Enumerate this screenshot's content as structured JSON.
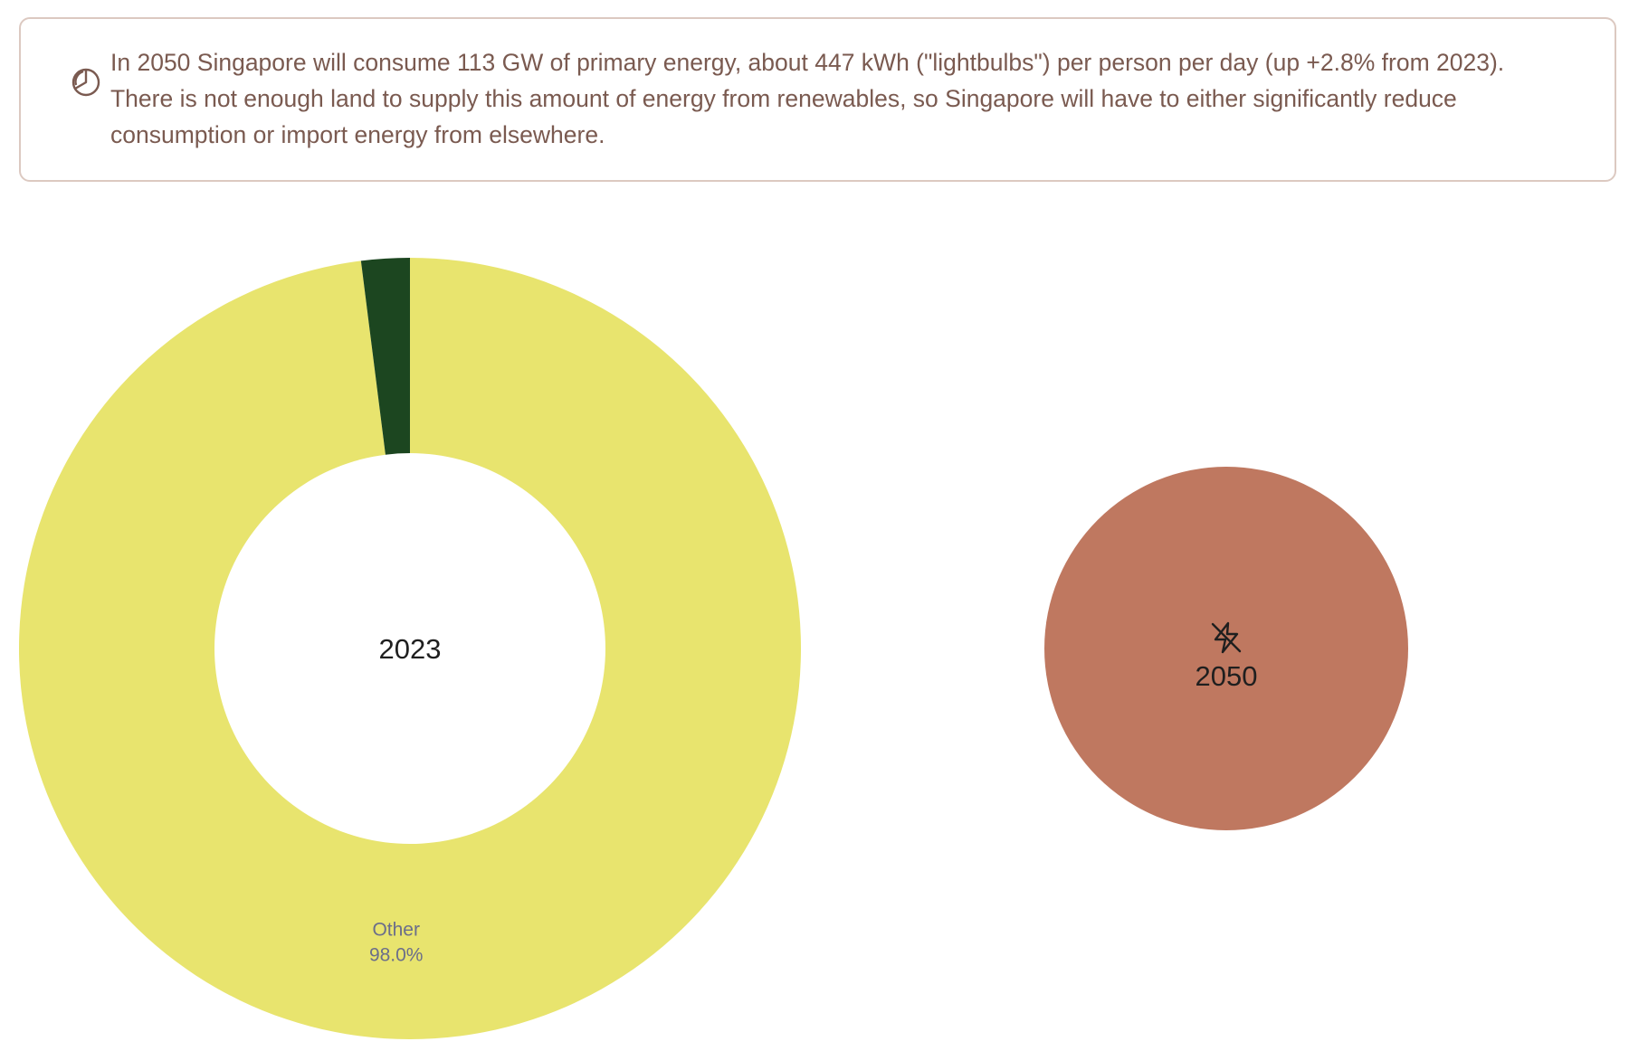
{
  "notice": {
    "icon": "pie-chart-icon",
    "text": "In 2050 Singapore will consume 113 GW of primary energy, about 447 kWh (\"lightbulbs\") per person per day (up +2.8% from 2023). There is not enough land to supply this amount of energy from renewables, so Singapore will have to either significantly reduce consumption or import energy from elsewhere."
  },
  "chart_data": [
    {
      "type": "pie",
      "center_label": "2023",
      "slices": [
        {
          "label": "Other",
          "value": 98.0,
          "value_label": "98.0%",
          "color": "#e8e46e"
        },
        {
          "label": "",
          "value": 2.0,
          "value_label": "",
          "color": "#1c4620"
        }
      ]
    },
    {
      "type": "pie",
      "center_label": "2050",
      "center_icon": "lightning-off-icon",
      "slices": [
        {
          "label": "",
          "value": 100,
          "value_label": "",
          "color": "#bf7860"
        }
      ]
    }
  ]
}
